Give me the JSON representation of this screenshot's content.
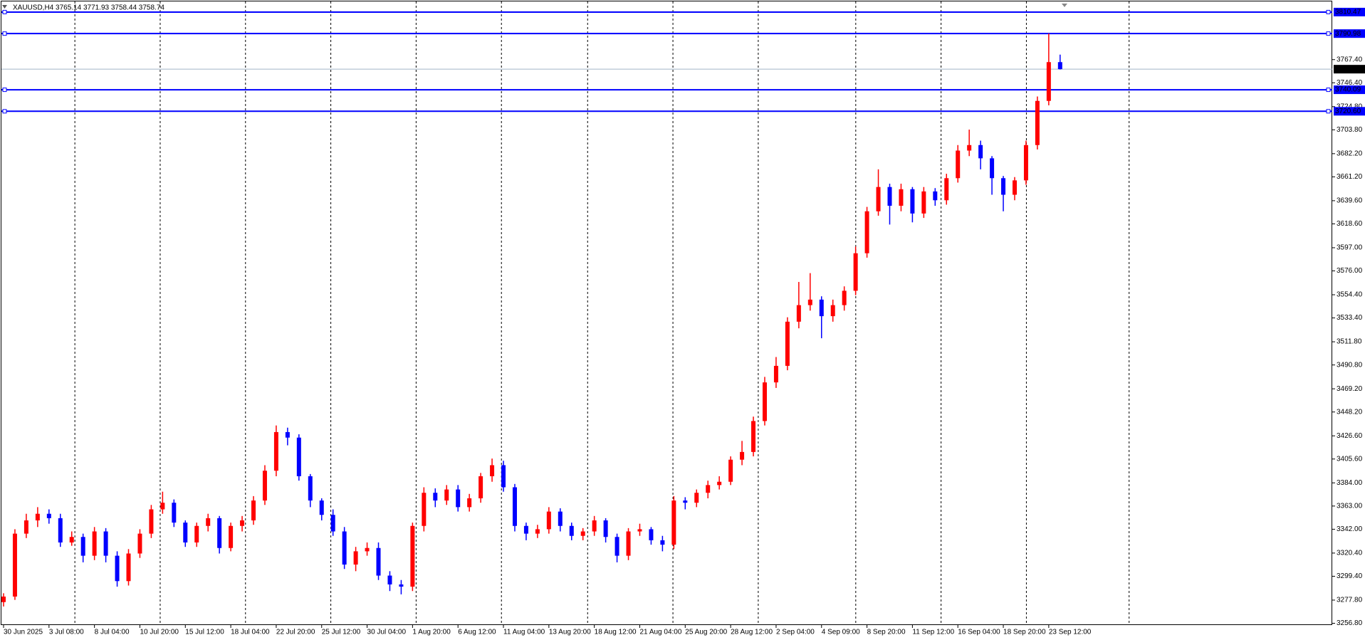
{
  "chart_data": {
    "type": "candlestick",
    "title": "XAUUSD,H4  3765.14 3771.93 3758.44 3758.74",
    "up_color": "#ff0000",
    "down_color": "#0000ff",
    "level_color": "#0000ff",
    "bid_color": "#a0b4c8",
    "categories": [
      "30 Jun 2025",
      null,
      null,
      null,
      "3 Jul 08:00",
      null,
      null,
      null,
      "8 Jul 04:00",
      null,
      null,
      null,
      "10 Jul 20:00",
      null,
      null,
      null,
      "15 Jul 12:00",
      null,
      null,
      null,
      "18 Jul 04:00",
      null,
      null,
      null,
      "22 Jul 20:00",
      null,
      null,
      null,
      "25 Jul 12:00",
      null,
      null,
      null,
      "30 Jul 04:00",
      null,
      null,
      null,
      "1 Aug 20:00",
      null,
      null,
      null,
      "6 Aug 12:00",
      null,
      null,
      null,
      "11 Aug 04:00",
      null,
      null,
      null,
      "13 Aug 20:00",
      null,
      null,
      null,
      "18 Aug 12:00",
      null,
      null,
      null,
      "21 Aug 04:00",
      null,
      null,
      null,
      "25 Aug 20:00",
      null,
      null,
      null,
      "28 Aug 12:00",
      null,
      null,
      null,
      "2 Sep 04:00",
      null,
      null,
      null,
      "4 Sep 09:00",
      null,
      null,
      null,
      "8 Sep 20:00",
      null,
      null,
      null,
      "11 Sep 12:00",
      null,
      null,
      null,
      "16 Sep 04:00",
      null,
      null,
      null,
      "18 Sep 20:00",
      null,
      null,
      null,
      "23 Sep 12:00",
      null
    ],
    "open": [
      3276,
      3281,
      3338,
      3350,
      3356,
      3352,
      3330,
      3335,
      3318,
      3340,
      3318,
      3295,
      3320,
      3338,
      3360,
      3366,
      3348,
      3330,
      3345,
      3352,
      3325,
      3345,
      3350,
      3368,
      3395,
      3430,
      3425,
      3390,
      3368,
      3355,
      3340,
      3310,
      3322,
      3325,
      3300,
      3292,
      3290,
      3345,
      3375,
      3368,
      3378,
      3362,
      3370,
      3390,
      3400,
      3380,
      3345,
      3338,
      3342,
      3358,
      3345,
      3336,
      3340,
      3350,
      3335,
      3318,
      3340,
      3342,
      3332,
      3328,
      3368,
      3366,
      3375,
      3382,
      3385,
      3405,
      3412,
      3440,
      3475,
      3490,
      3530,
      3545,
      3550,
      3535,
      3545,
      3558,
      3592,
      3630,
      3652,
      3635,
      3650,
      3628,
      3648,
      3640,
      3660,
      3685,
      3690,
      3678,
      3660,
      3645,
      3658,
      3690,
      3730,
      3765.14
    ],
    "high": [
      3284,
      3342,
      3356,
      3362,
      3360,
      3356,
      3340,
      3338,
      3344,
      3343,
      3322,
      3324,
      3342,
      3364,
      3376,
      3369,
      3350,
      3348,
      3356,
      3354,
      3348,
      3354,
      3372,
      3400,
      3436,
      3434,
      3428,
      3392,
      3370,
      3360,
      3344,
      3326,
      3330,
      3330,
      3304,
      3296,
      3348,
      3380,
      3379,
      3382,
      3382,
      3374,
      3393,
      3406,
      3404,
      3383,
      3348,
      3346,
      3362,
      3361,
      3348,
      3343,
      3354,
      3352,
      3338,
      3343,
      3347,
      3344,
      3336,
      3372,
      3371,
      3378,
      3386,
      3390,
      3408,
      3422,
      3444,
      3480,
      3498,
      3534,
      3566,
      3574,
      3553,
      3550,
      3562,
      3598,
      3634,
      3668,
      3655,
      3655,
      3652,
      3652,
      3651,
      3664,
      3690,
      3704,
      3694,
      3680,
      3662,
      3661,
      3694,
      3734,
      3791,
      3771.93
    ],
    "low": [
      3272,
      3278,
      3334,
      3344,
      3347,
      3326,
      3327,
      3312,
      3314,
      3312,
      3290,
      3291,
      3316,
      3334,
      3356,
      3344,
      3326,
      3326,
      3340,
      3320,
      3322,
      3340,
      3346,
      3364,
      3390,
      3418,
      3386,
      3362,
      3350,
      3336,
      3306,
      3304,
      3318,
      3296,
      3286,
      3283,
      3286,
      3340,
      3362,
      3364,
      3358,
      3358,
      3366,
      3385,
      3376,
      3340,
      3332,
      3334,
      3338,
      3340,
      3332,
      3332,
      3336,
      3330,
      3312,
      3314,
      3336,
      3328,
      3322,
      3324,
      3360,
      3362,
      3370,
      3378,
      3382,
      3400,
      3408,
      3436,
      3470,
      3486,
      3524,
      3540,
      3515,
      3530,
      3540,
      3554,
      3588,
      3626,
      3618,
      3630,
      3620,
      3624,
      3635,
      3636,
      3656,
      3680,
      3668,
      3645,
      3630,
      3640,
      3654,
      3686,
      3726,
      3758.44
    ],
    "close": [
      3281,
      3338,
      3350,
      3356,
      3352,
      3330,
      3335,
      3318,
      3340,
      3318,
      3295,
      3320,
      3338,
      3360,
      3366,
      3348,
      3330,
      3345,
      3352,
      3325,
      3345,
      3350,
      3368,
      3395,
      3430,
      3425,
      3390,
      3368,
      3355,
      3340,
      3310,
      3322,
      3325,
      3300,
      3292,
      3290,
      3345,
      3375,
      3368,
      3378,
      3362,
      3370,
      3390,
      3400,
      3380,
      3345,
      3338,
      3342,
      3358,
      3345,
      3336,
      3340,
      3350,
      3335,
      3318,
      3340,
      3342,
      3332,
      3328,
      3368,
      3366,
      3375,
      3382,
      3385,
      3405,
      3412,
      3440,
      3475,
      3490,
      3530,
      3545,
      3550,
      3535,
      3545,
      3558,
      3592,
      3630,
      3652,
      3635,
      3650,
      3628,
      3648,
      3640,
      3660,
      3685,
      3690,
      3678,
      3660,
      3645,
      3658,
      3690,
      3730,
      3765.14,
      3758.74
    ],
    "levels": [
      {
        "value": 3810.47,
        "label": "3810.47"
      },
      {
        "value": 3790.98,
        "label": "3790.98"
      },
      {
        "value": 3740.09,
        "label": "3740.09"
      },
      {
        "value": 3720.6,
        "label": "3720.60"
      }
    ],
    "bid": {
      "value": 3758.74,
      "label": "3758.74"
    },
    "ylim": [
      3255.2,
      3821.4
    ],
    "yticks": [
      {
        "value": 3256.8,
        "label": "3256.80"
      },
      {
        "value": 3277.8,
        "label": "3277.80"
      },
      {
        "value": 3299.4,
        "label": "3299.40"
      },
      {
        "value": 3320.4,
        "label": "3320.40"
      },
      {
        "value": 3342,
        "label": "3342.00"
      },
      {
        "value": 3363,
        "label": "3363.00"
      },
      {
        "value": 3384,
        "label": "3384.00"
      },
      {
        "value": 3405.6,
        "label": "3405.60"
      },
      {
        "value": 3426.6,
        "label": "3426.60"
      },
      {
        "value": 3448.2,
        "label": "3448.20"
      },
      {
        "value": 3469.2,
        "label": "3469.20"
      },
      {
        "value": 3490.8,
        "label": "3490.80"
      },
      {
        "value": 3511.8,
        "label": "3511.80"
      },
      {
        "value": 3533.4,
        "label": "3533.40"
      },
      {
        "value": 3554.4,
        "label": "3554.40"
      },
      {
        "value": 3576,
        "label": "3576.00"
      },
      {
        "value": 3597,
        "label": "3597.00"
      },
      {
        "value": 3618.6,
        "label": "3618.60"
      },
      {
        "value": 3639.6,
        "label": "3639.60"
      },
      {
        "value": 3661.2,
        "label": "3661.20"
      },
      {
        "value": 3682.2,
        "label": "3682.20"
      },
      {
        "value": 3703.8,
        "label": "3703.80"
      },
      {
        "value": 3724.8,
        "label": "3724.80"
      },
      {
        "value": 3746.4,
        "label": "3746.40"
      },
      {
        "value": 3767.4,
        "label": "3767.40"
      }
    ]
  }
}
